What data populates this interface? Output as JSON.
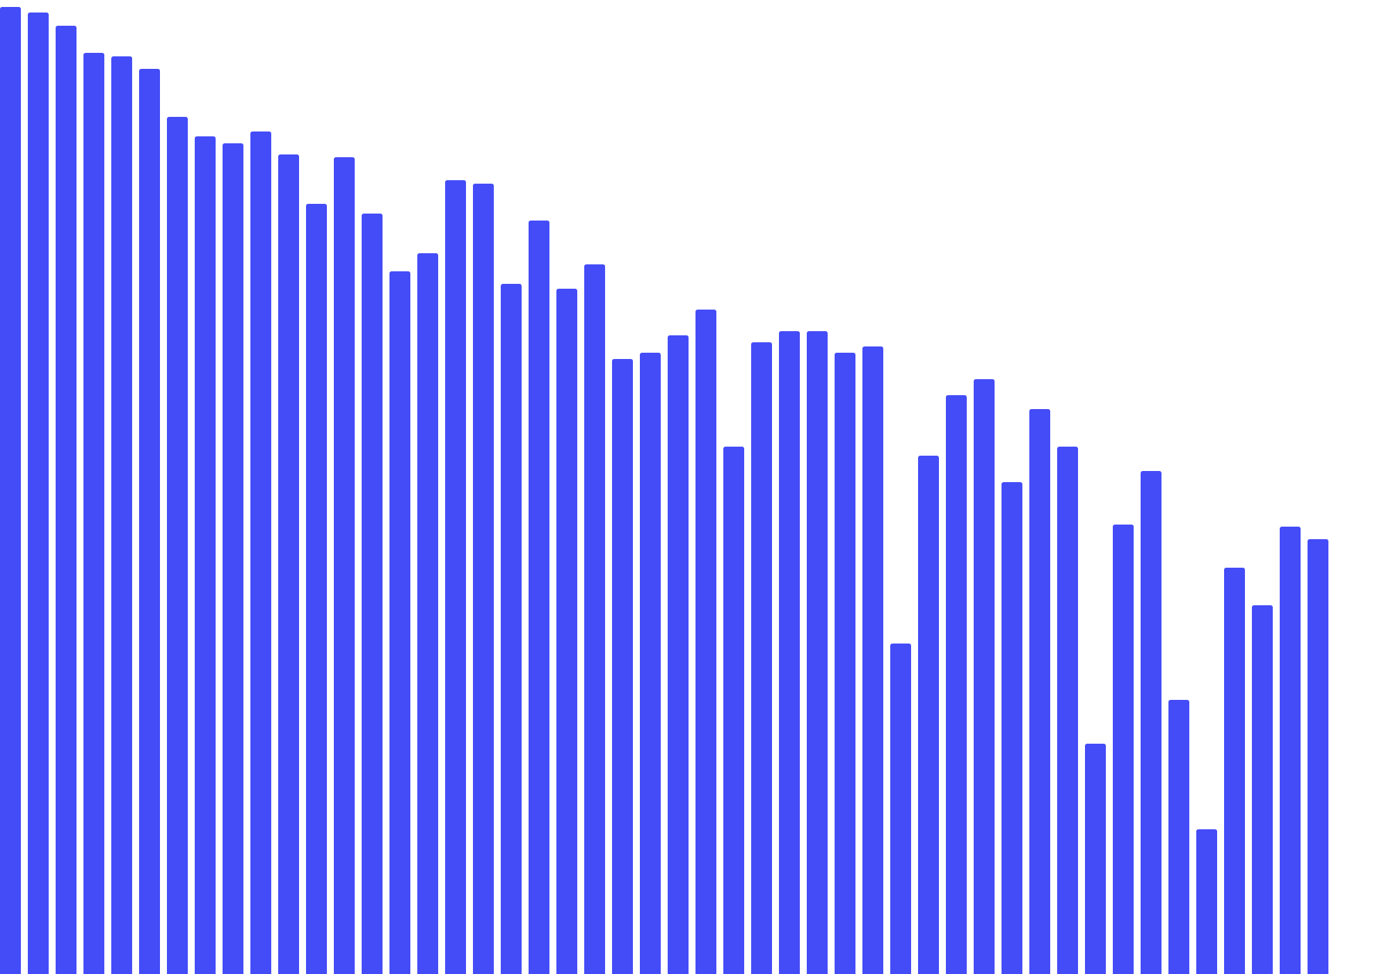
{
  "chart_data": {
    "type": "bar",
    "title": "",
    "xlabel": "",
    "ylabel": "",
    "ylim": [
      0,
      1400
    ],
    "grid": false,
    "legend": "none",
    "bar_color": "#444cf7",
    "values": [
      1390,
      1382,
      1363,
      1324,
      1319,
      1301,
      1232,
      1204,
      1194,
      1211,
      1178,
      1107,
      1174,
      1093,
      1010,
      1036,
      1141,
      1136,
      992,
      1083,
      985,
      1020,
      884,
      893,
      918,
      955,
      758,
      908,
      924,
      924,
      893,
      902,
      475,
      745,
      832,
      855,
      707,
      812,
      758,
      331,
      646,
      723,
      394,
      208,
      584,
      530,
      643,
      625
    ]
  }
}
